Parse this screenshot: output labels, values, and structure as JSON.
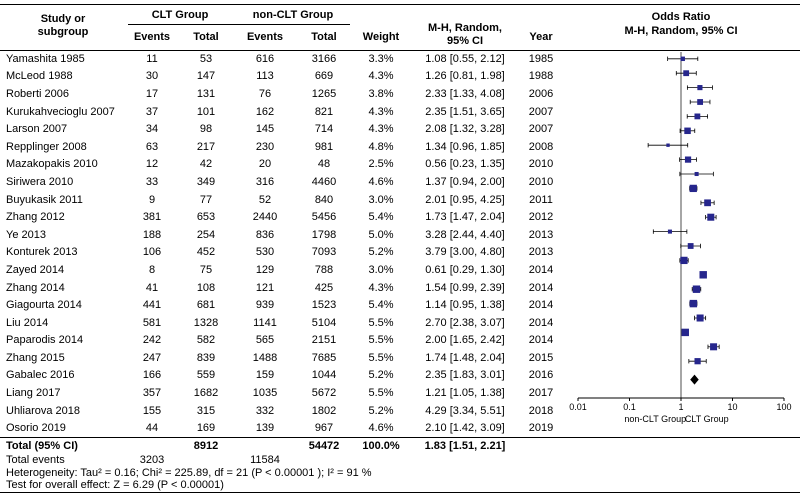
{
  "header": {
    "study_col_line1": "Study or",
    "study_col_line2": "subgroup",
    "group_clt": "CLT Group",
    "group_nonclt": "non-CLT Group",
    "events_label": "Events",
    "total_label": "Total",
    "weight_label": "Weight",
    "mh_line1": "M-H, Random,",
    "mh_line2": "95% CI",
    "year_label": "Year",
    "or_line1": "Odds Ratio",
    "or_line2": "M-H, Random, 95% CI"
  },
  "chart_data": {
    "type": "scatter",
    "subtype": "forest-plot",
    "x_scale": "log10",
    "x_range": [
      0.01,
      100
    ],
    "x_ticks": [
      0.01,
      0.1,
      1,
      10,
      100
    ],
    "x_tick_labels": [
      "0.01",
      "0.1",
      "1",
      "10",
      "100"
    ],
    "axis_label_left": "non-CLT Group",
    "axis_label_right": "CLT Group",
    "marker_color": "#26268c",
    "studies": [
      {
        "study": "Yamashita 1985",
        "events_clt": "11",
        "total_clt": "53",
        "events_nonclt": "616",
        "total_nonclt": "3166",
        "weight": "3.3%",
        "weight_pct": 3.3,
        "estimate_label": "1.08 [0.55, 2.12]",
        "year": "1985",
        "or": 1.08,
        "ci_low": 0.55,
        "ci_high": 2.12
      },
      {
        "study": "McLeod 1988",
        "events_clt": "30",
        "total_clt": "147",
        "events_nonclt": "113",
        "total_nonclt": "669",
        "weight": "4.3%",
        "weight_pct": 4.3,
        "estimate_label": "1.26 [0.81, 1.98]",
        "year": "1988",
        "or": 1.26,
        "ci_low": 0.81,
        "ci_high": 1.98
      },
      {
        "study": "Roberti 2006",
        "events_clt": "17",
        "total_clt": "131",
        "events_nonclt": "76",
        "total_nonclt": "1265",
        "weight": "3.8%",
        "weight_pct": 3.8,
        "estimate_label": "2.33 [1.33, 4.08]",
        "year": "2006",
        "or": 2.33,
        "ci_low": 1.33,
        "ci_high": 4.08
      },
      {
        "study": "Kurukahvecioglu 2007",
        "events_clt": "37",
        "total_clt": "101",
        "events_nonclt": "162",
        "total_nonclt": "821",
        "weight": "4.3%",
        "weight_pct": 4.3,
        "estimate_label": "2.35 [1.51, 3.65]",
        "year": "2007",
        "or": 2.35,
        "ci_low": 1.51,
        "ci_high": 3.65
      },
      {
        "study": "Larson 2007",
        "events_clt": "34",
        "total_clt": "98",
        "events_nonclt": "145",
        "total_nonclt": "714",
        "weight": "4.3%",
        "weight_pct": 4.3,
        "estimate_label": "2.08 [1.32, 3.28]",
        "year": "2007",
        "or": 2.08,
        "ci_low": 1.32,
        "ci_high": 3.28
      },
      {
        "study": "Repplinger 2008",
        "events_clt": "63",
        "total_clt": "217",
        "events_nonclt": "230",
        "total_nonclt": "981",
        "weight": "4.8%",
        "weight_pct": 4.8,
        "estimate_label": "1.34 [0.96, 1.85]",
        "year": "2008",
        "or": 1.34,
        "ci_low": 0.96,
        "ci_high": 1.85
      },
      {
        "study": "Mazakopakis 2010",
        "events_clt": "12",
        "total_clt": "42",
        "events_nonclt": "20",
        "total_nonclt": "48",
        "weight": "2.5%",
        "weight_pct": 2.5,
        "estimate_label": "0.56 [0.23, 1.35]",
        "year": "2010",
        "or": 0.56,
        "ci_low": 0.23,
        "ci_high": 1.35
      },
      {
        "study": "Siriwera 2010",
        "events_clt": "33",
        "total_clt": "349",
        "events_nonclt": "316",
        "total_nonclt": "4460",
        "weight": "4.6%",
        "weight_pct": 4.6,
        "estimate_label": "1.37 [0.94, 2.00]",
        "year": "2010",
        "or": 1.37,
        "ci_low": 0.94,
        "ci_high": 2.0
      },
      {
        "study": "Buyukasik 2011",
        "events_clt": "9",
        "total_clt": "77",
        "events_nonclt": "52",
        "total_nonclt": "840",
        "weight": "3.0%",
        "weight_pct": 3.0,
        "estimate_label": "2.01 [0.95, 4.25]",
        "year": "2011",
        "or": 2.01,
        "ci_low": 0.95,
        "ci_high": 4.25
      },
      {
        "study": "Zhang 2012",
        "events_clt": "381",
        "total_clt": "653",
        "events_nonclt": "2440",
        "total_nonclt": "5456",
        "weight": "5.4%",
        "weight_pct": 5.4,
        "estimate_label": "1.73 [1.47, 2.04]",
        "year": "2012",
        "or": 1.73,
        "ci_low": 1.47,
        "ci_high": 2.04
      },
      {
        "study": "Ye 2013",
        "events_clt": "188",
        "total_clt": "254",
        "events_nonclt": "836",
        "total_nonclt": "1798",
        "weight": "5.0%",
        "weight_pct": 5.0,
        "estimate_label": "3.28 [2.44, 4.40]",
        "year": "2013",
        "or": 3.28,
        "ci_low": 2.44,
        "ci_high": 4.4
      },
      {
        "study": "Konturek 2013",
        "events_clt": "106",
        "total_clt": "452",
        "events_nonclt": "530",
        "total_nonclt": "7093",
        "weight": "5.2%",
        "weight_pct": 5.2,
        "estimate_label": "3.79 [3.00, 4.80]",
        "year": "2013",
        "or": 3.79,
        "ci_low": 3.0,
        "ci_high": 4.8
      },
      {
        "study": "Zayed 2014",
        "events_clt": "8",
        "total_clt": "75",
        "events_nonclt": "129",
        "total_nonclt": "788",
        "weight": "3.0%",
        "weight_pct": 3.0,
        "estimate_label": "0.61 [0.29, 1.30]",
        "year": "2014",
        "or": 0.61,
        "ci_low": 0.29,
        "ci_high": 1.3
      },
      {
        "study": "Zhang 2014",
        "events_clt": "41",
        "total_clt": "108",
        "events_nonclt": "121",
        "total_nonclt": "425",
        "weight": "4.3%",
        "weight_pct": 4.3,
        "estimate_label": "1.54 [0.99, 2.39]",
        "year": "2014",
        "or": 1.54,
        "ci_low": 0.99,
        "ci_high": 2.39
      },
      {
        "study": "Giagourta 2014",
        "events_clt": "441",
        "total_clt": "681",
        "events_nonclt": "939",
        "total_nonclt": "1523",
        "weight": "5.4%",
        "weight_pct": 5.4,
        "estimate_label": "1.14 [0.95, 1.38]",
        "year": "2014",
        "or": 1.14,
        "ci_low": 0.95,
        "ci_high": 1.38
      },
      {
        "study": "Liu 2014",
        "events_clt": "581",
        "total_clt": "1328",
        "events_nonclt": "1141",
        "total_nonclt": "5104",
        "weight": "5.5%",
        "weight_pct": 5.5,
        "estimate_label": "2.70 [2.38, 3.07]",
        "year": "2014",
        "or": 2.7,
        "ci_low": 2.38,
        "ci_high": 3.07
      },
      {
        "study": "Paparodis 2014",
        "events_clt": "242",
        "total_clt": "582",
        "events_nonclt": "565",
        "total_nonclt": "2151",
        "weight": "5.5%",
        "weight_pct": 5.5,
        "estimate_label": "2.00 [1.65, 2.42]",
        "year": "2014",
        "or": 2.0,
        "ci_low": 1.65,
        "ci_high": 2.42
      },
      {
        "study": "Zhang 2015",
        "events_clt": "247",
        "total_clt": "839",
        "events_nonclt": "1488",
        "total_nonclt": "7685",
        "weight": "5.5%",
        "weight_pct": 5.5,
        "estimate_label": "1.74 [1.48, 2.04]",
        "year": "2015",
        "or": 1.74,
        "ci_low": 1.48,
        "ci_high": 2.04
      },
      {
        "study": "Gabalec 2016",
        "events_clt": "166",
        "total_clt": "559",
        "events_nonclt": "159",
        "total_nonclt": "1044",
        "weight": "5.2%",
        "weight_pct": 5.2,
        "estimate_label": "2.35 [1.83, 3.01]",
        "year": "2016",
        "or": 2.35,
        "ci_low": 1.83,
        "ci_high": 3.01
      },
      {
        "study": "Liang 2017",
        "events_clt": "357",
        "total_clt": "1682",
        "events_nonclt": "1035",
        "total_nonclt": "5672",
        "weight": "5.5%",
        "weight_pct": 5.5,
        "estimate_label": "1.21 [1.05, 1.38]",
        "year": "2017",
        "or": 1.21,
        "ci_low": 1.05,
        "ci_high": 1.38
      },
      {
        "study": "Uhliarova 2018",
        "events_clt": "155",
        "total_clt": "315",
        "events_nonclt": "332",
        "total_nonclt": "1802",
        "weight": "5.2%",
        "weight_pct": 5.2,
        "estimate_label": "4.29 [3.34, 5.51]",
        "year": "2018",
        "or": 4.29,
        "ci_low": 3.34,
        "ci_high": 5.51
      },
      {
        "study": "Osorio 2019",
        "events_clt": "44",
        "total_clt": "169",
        "events_nonclt": "139",
        "total_nonclt": "967",
        "weight": "4.6%",
        "weight_pct": 4.6,
        "estimate_label": "2.10 [1.42, 3.09]",
        "year": "2019",
        "or": 2.1,
        "ci_low": 1.42,
        "ci_high": 3.09
      }
    ],
    "total": {
      "label": "Total (95% CI)",
      "total_clt": "8912",
      "total_nonclt": "54472",
      "weight": "100.0%",
      "estimate_label": "1.83 [1.51, 2.21]",
      "or": 1.83,
      "ci_low": 1.51,
      "ci_high": 2.21
    }
  },
  "footer": {
    "total_events_label": "Total events",
    "total_events_clt": "3203",
    "total_events_nonclt": "11584",
    "heterogeneity": "Heterogeneity: Tau² = 0.16; Chi² = 225.89, df = 21 (P < 0.00001 ); I² = 91 %",
    "overall_effect": "Test for overall effect: Z = 6.29 (P < 0.00001)"
  }
}
